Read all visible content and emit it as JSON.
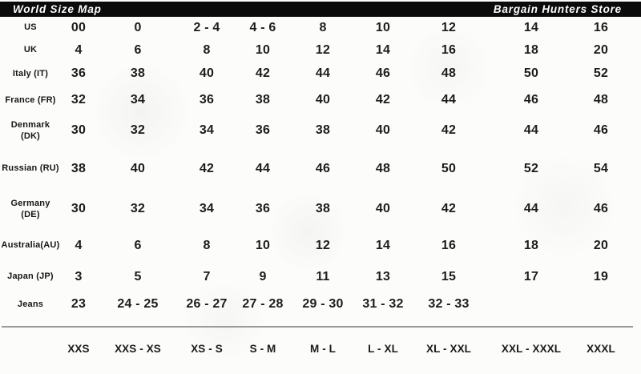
{
  "header": {
    "left_title": "World Size Map",
    "right_title": "Bargain Hunters Store"
  },
  "colors": {
    "header_bar": "#0b0b0b",
    "header_text": "#fdfdfd",
    "body_text": "#1c1c1c",
    "divider": "#9b9b9b",
    "paper": "#fcfcfa"
  },
  "table": {
    "rows": [
      {
        "label": "US",
        "values": [
          "00",
          "0",
          "2 - 4",
          "4 - 6",
          "8",
          "10",
          "12",
          "14",
          "16"
        ]
      },
      {
        "label": "UK",
        "values": [
          "4",
          "6",
          "8",
          "10",
          "12",
          "14",
          "16",
          "18",
          "20"
        ]
      },
      {
        "label": "Italy (IT)",
        "values": [
          "36",
          "38",
          "40",
          "42",
          "44",
          "46",
          "48",
          "50",
          "52"
        ]
      },
      {
        "label": "France (FR)",
        "values": [
          "32",
          "34",
          "36",
          "38",
          "40",
          "42",
          "44",
          "46",
          "48"
        ]
      },
      {
        "label": "Denmark\n(DK)",
        "values": [
          "30",
          "32",
          "34",
          "36",
          "38",
          "40",
          "42",
          "44",
          "46"
        ]
      },
      {
        "label": "Russian (RU)",
        "values": [
          "38",
          "40",
          "42",
          "44",
          "46",
          "48",
          "50",
          "52",
          "54"
        ]
      },
      {
        "label": "Germany\n(DE)",
        "values": [
          "30",
          "32",
          "34",
          "36",
          "38",
          "40",
          "42",
          "44",
          "46"
        ]
      },
      {
        "label": "Australia(AU)",
        "values": [
          "4",
          "6",
          "8",
          "10",
          "12",
          "14",
          "16",
          "18",
          "20"
        ]
      },
      {
        "label": "Japan (JP)",
        "values": [
          "3",
          "5",
          "7",
          "9",
          "11",
          "13",
          "15",
          "17",
          "19"
        ]
      },
      {
        "label": "Jeans",
        "values": [
          "23",
          "24 - 25",
          "26 - 27",
          "27 - 28",
          "29 - 30",
          "31 - 32",
          "32 - 33",
          "",
          ""
        ]
      }
    ],
    "size_categories": [
      "XXS",
      "XXS - XS",
      "XS - S",
      "S - M",
      "M - L",
      "L - XL",
      "XL - XXL",
      "XXL - XXXL",
      "XXXL"
    ]
  }
}
